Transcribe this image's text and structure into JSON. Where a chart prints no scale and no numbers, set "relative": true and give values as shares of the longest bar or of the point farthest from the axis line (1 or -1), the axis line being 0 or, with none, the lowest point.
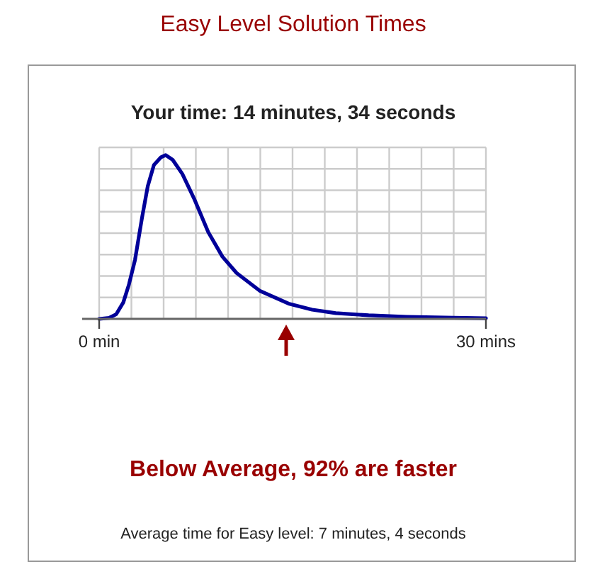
{
  "chart_data": {
    "type": "line",
    "title": "Easy Level Solution Times",
    "subtitle": "Your time: 14 minutes, 34 seconds",
    "relative": true,
    "grid": true,
    "color": "#000099",
    "x": [
      0,
      0.77,
      1.32,
      1.87,
      2.31,
      2.78,
      3.33,
      3.77,
      4.25,
      4.8,
      5.16,
      5.71,
      6.45,
      7.36,
      8.46,
      9.56,
      10.66,
      12.49,
      14.69,
      16.52,
      18.35,
      20.9,
      23.85,
      27.5,
      30
    ],
    "values": [
      0,
      0.006,
      0.028,
      0.1,
      0.21,
      0.36,
      0.62,
      0.81,
      0.94,
      0.987,
      1,
      0.97,
      0.885,
      0.735,
      0.53,
      0.38,
      0.28,
      0.17,
      0.093,
      0.056,
      0.035,
      0.022,
      0.013,
      0.007,
      0.004
    ],
    "xlim": [
      0,
      30
    ],
    "xticks": [
      {
        "value": 0,
        "label": "0 min"
      },
      {
        "value": 2.5,
        "label": null
      },
      {
        "value": 5,
        "label": null
      },
      {
        "value": 7.5,
        "label": null
      },
      {
        "value": 10,
        "label": null
      },
      {
        "value": 12.5,
        "label": null
      },
      {
        "value": 15,
        "label": null
      },
      {
        "value": 17.5,
        "label": null
      },
      {
        "value": 20,
        "label": null
      },
      {
        "value": 22.5,
        "label": null
      },
      {
        "value": 25,
        "label": null
      },
      {
        "value": 27.5,
        "label": null
      },
      {
        "value": 30,
        "label": "30 mins"
      }
    ],
    "annotations": [
      "Below Average, 92% are faster",
      "Average time for Easy level: 7 minutes, 4 seconds"
    ]
  }
}
